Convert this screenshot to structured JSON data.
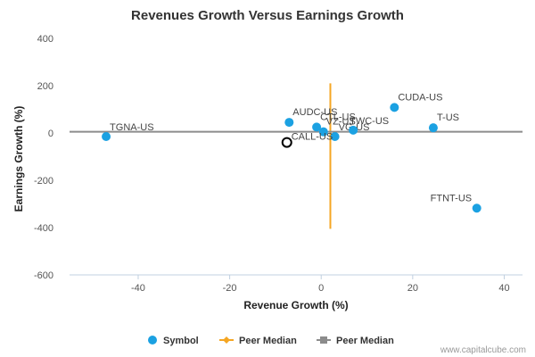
{
  "chart_data": {
    "type": "scatter",
    "title": "Revenues Growth Versus Earnings Growth",
    "xlabel": "Revenue Growth (%)",
    "ylabel": "Earnings Growth (%)",
    "xlim": [
      -55,
      44
    ],
    "ylim": [
      -600,
      400
    ],
    "xticks": [
      -40,
      -20,
      0,
      20,
      40
    ],
    "yticks": [
      400,
      200,
      0,
      -200,
      -400,
      -600
    ],
    "grid": false,
    "legend_position": "bottom",
    "colors": {
      "symbol": "#1ba1e2",
      "peer_median_vertical": "#f5a623",
      "peer_median_horizontal": "#8c8c8c",
      "highlight_outline": "#000000",
      "axis_line": "#c0d0e0"
    },
    "points": [
      {
        "label": "TGNA-US",
        "x": -47,
        "y": -15
      },
      {
        "label": "AUDC-US",
        "x": -7,
        "y": 45
      },
      {
        "label": "CTL-US",
        "x": -1,
        "y": 25
      },
      {
        "label": "VZ-US",
        "x": 0.5,
        "y": 5
      },
      {
        "label": "VG-US",
        "x": 3,
        "y": -15
      },
      {
        "label": "TWC-US",
        "x": 7,
        "y": 12
      },
      {
        "label": "CUDA-US",
        "x": 16,
        "y": 108
      },
      {
        "label": "T-US",
        "x": 24.5,
        "y": 22
      },
      {
        "label": "FTNT-US",
        "x": 34,
        "y": -318
      }
    ],
    "highlight": {
      "label": "CALL-US",
      "x": -7.5,
      "y": -40
    },
    "peer_median": {
      "x": 2,
      "y": 5,
      "y_range": [
        -405,
        210
      ],
      "x_range": [
        -55,
        44
      ]
    },
    "legend": [
      {
        "label": "Symbol",
        "kind": "dot"
      },
      {
        "label": "Peer Median",
        "kind": "vertical"
      },
      {
        "label": "Peer Median",
        "kind": "horizontal"
      }
    ]
  },
  "watermark": "www.capitalcube.com"
}
